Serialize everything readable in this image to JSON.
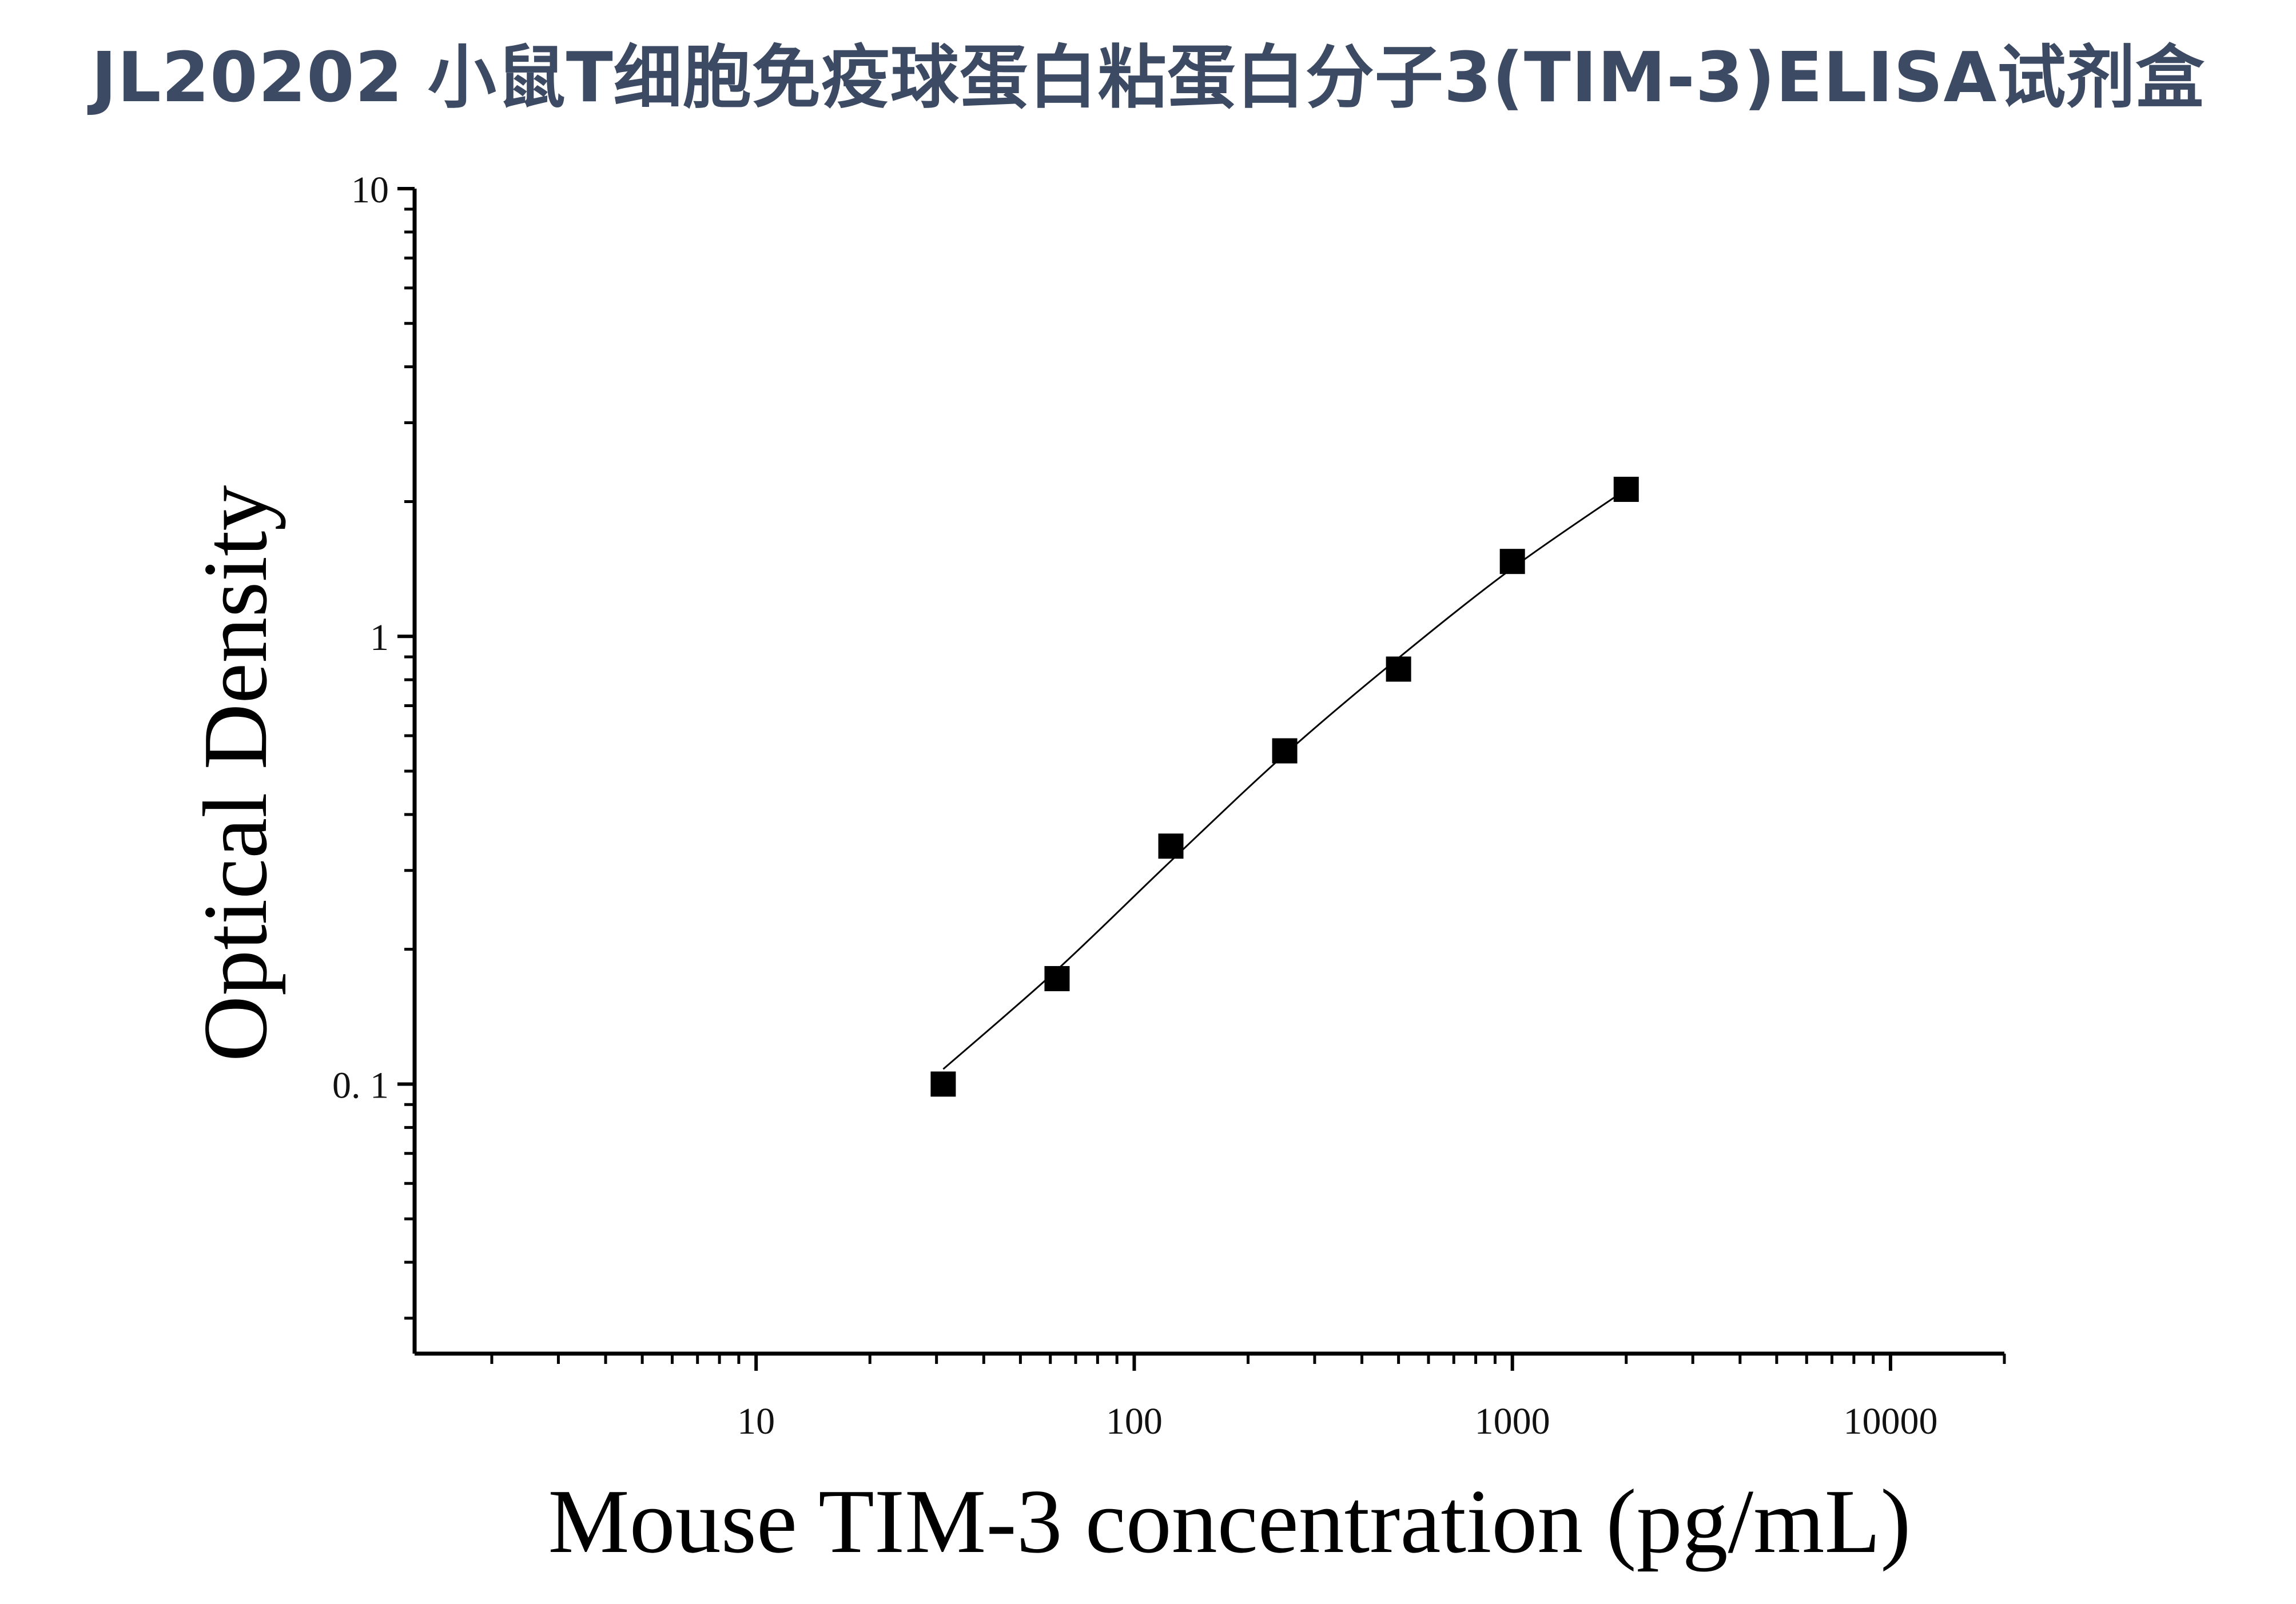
{
  "title": "JL20202 小鼠T细胞免疫球蛋白粘蛋白分子3(TIM-3)ELISA试剂盒",
  "chart_data": {
    "type": "scatter",
    "title": "JL20202 小鼠T细胞免疫球蛋白粘蛋白分子3(TIM-3)ELISA试剂盒",
    "xlabel": "Mouse TIM-3 concentration (pg/mL)",
    "ylabel": "Optical Density",
    "x_scale": "log",
    "y_scale": "log",
    "xlim": [
      1.25,
      20000
    ],
    "ylim": [
      0.025,
      10
    ],
    "x_ticks": [
      10,
      100,
      1000,
      10000
    ],
    "x_tick_labels": [
      "10",
      "100",
      "1000",
      "10000"
    ],
    "y_ticks": [
      0.1,
      1,
      10
    ],
    "y_tick_labels": [
      "0. 1",
      "1",
      "10"
    ],
    "grid": false,
    "series": [
      {
        "marker": "square",
        "color": "#000000",
        "x": [
          31.25,
          62.5,
          125,
          250,
          500,
          1000,
          2000
        ],
        "y": [
          0.1,
          0.172,
          0.34,
          0.555,
          0.845,
          1.47,
          2.13
        ]
      }
    ],
    "fit_curve": {
      "color": "#000000",
      "x": [
        31.25,
        62.5,
        125,
        250,
        500,
        1000,
        2000
      ],
      "y": [
        0.108,
        0.18,
        0.315,
        0.545,
        0.895,
        1.42,
        2.13
      ]
    }
  }
}
